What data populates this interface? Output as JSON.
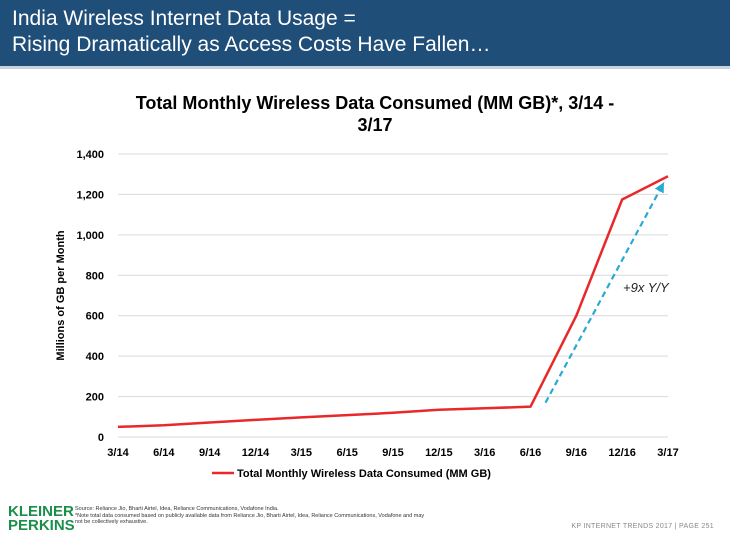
{
  "header": {
    "title_line1": "India Wireless Internet Data Usage =",
    "title_line2": "Rising Dramatically as Access Costs Have Fallen…",
    "background": "#1f4e79"
  },
  "chart_data": {
    "type": "line",
    "title_line1": "Total Monthly Wireless Data Consumed (MM GB)*, 3/14 -",
    "title_line2": "3/17",
    "ylabel": "Millions of GB per Month",
    "xlabel": "",
    "ylim": [
      0,
      1400
    ],
    "yticks": [
      0,
      200,
      400,
      600,
      800,
      1000,
      1200,
      1400
    ],
    "ytick_labels": [
      "0",
      "200",
      "400",
      "600",
      "800",
      "1,000",
      "1,200",
      "1,400"
    ],
    "categories": [
      "3/14",
      "6/14",
      "9/14",
      "12/14",
      "3/15",
      "6/15",
      "9/15",
      "12/15",
      "3/16",
      "6/16",
      "9/16",
      "12/16",
      "3/17"
    ],
    "grid": true,
    "legend_position": "bottom",
    "series": [
      {
        "name": "Total Monthly Wireless Data Consumed (MM GB)",
        "color": "#e8282b",
        "values": [
          50,
          58,
          72,
          85,
          97,
          108,
          120,
          135,
          142,
          150,
          600,
          1175,
          1290
        ]
      }
    ],
    "annotation": {
      "text": "+9x Y/Y",
      "color": "#2aa9d6",
      "from": {
        "x": "6/16",
        "y": 150
      },
      "to": {
        "x": "3/17",
        "y": 1290
      }
    }
  },
  "footer": {
    "logo_line1": "KLEINER",
    "logo_line2": "PERKINS",
    "source_line1": "Source: Reliance Jio, Bharti Airtel, Idea, Reliance Communications, Vodafone India.",
    "source_line2": "*Note total data consumed based on publicly available data from Reliance Jio, Bharti Airtel, Idea, Reliance Communications, Vodafone and may",
    "source_line3": "not be collectively exhaustive.",
    "page_label": "KP INTERNET TRENDS 2017  |  PAGE 251"
  }
}
